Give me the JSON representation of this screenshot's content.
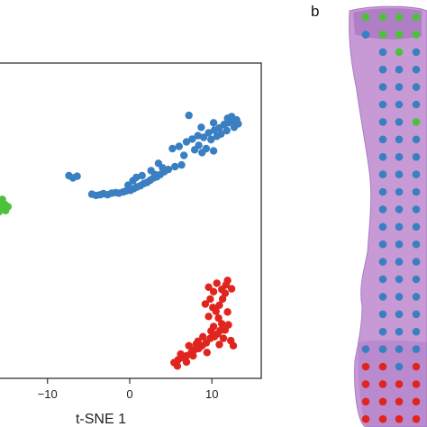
{
  "figure": {
    "panel_b_label": "b"
  },
  "colors": {
    "blue": "#3a7fc1",
    "green": "#4cc23a",
    "red": "#e0251e",
    "tissue": "#c79ad6",
    "tissue_dark": "#8f5fae"
  },
  "chart_data": {
    "type": "scatter",
    "xlabel": "t-SNE 1",
    "ylabel": "",
    "xlim": [
      -16,
      16
    ],
    "ylim": [
      -30,
      26
    ],
    "x_ticks": [
      -10,
      0,
      10
    ],
    "x_tick_labels": [
      "−10",
      "0",
      "10"
    ],
    "grid": false,
    "series": [
      {
        "color": "blue",
        "points": [
          [
            -7.4,
            6.0
          ],
          [
            -6.9,
            5.6
          ],
          [
            -6.4,
            5.9
          ],
          [
            -4.6,
            2.7
          ],
          [
            -4.1,
            2.5
          ],
          [
            -3.6,
            2.6
          ],
          [
            -3.2,
            2.8
          ],
          [
            -2.7,
            2.6
          ],
          [
            -2.2,
            2.9
          ],
          [
            -1.7,
            3.0
          ],
          [
            -1.3,
            2.9
          ],
          [
            -0.8,
            3.1
          ],
          [
            -0.4,
            3.3
          ],
          [
            0.1,
            3.4
          ],
          [
            0.5,
            3.7
          ],
          [
            0.9,
            4.0
          ],
          [
            1.3,
            4.2
          ],
          [
            1.7,
            4.6
          ],
          [
            2.1,
            4.8
          ],
          [
            2.5,
            5.2
          ],
          [
            2.9,
            5.6
          ],
          [
            3.3,
            5.8
          ],
          [
            3.7,
            6.2
          ],
          [
            4.2,
            6.7
          ],
          [
            4.7,
            7.1
          ],
          [
            5.5,
            7.6
          ],
          [
            6.3,
            7.9
          ],
          [
            -0.2,
            4.3
          ],
          [
            0.4,
            5.1
          ],
          [
            0.8,
            5.7
          ],
          [
            1.5,
            6.0
          ],
          [
            2.6,
            6.9
          ],
          [
            3.1,
            6.2
          ],
          [
            4.0,
            7.4
          ],
          [
            3.5,
            8.2
          ],
          [
            5.2,
            10.8
          ],
          [
            6.0,
            11.2
          ],
          [
            6.9,
            12.0
          ],
          [
            7.6,
            12.5
          ],
          [
            8.3,
            13.1
          ],
          [
            9.0,
            12.8
          ],
          [
            9.6,
            13.6
          ],
          [
            10.3,
            14.1
          ],
          [
            10.9,
            14.5
          ],
          [
            11.5,
            15.1
          ],
          [
            12.0,
            15.4
          ],
          [
            12.6,
            15.7
          ],
          [
            13.0,
            15.9
          ],
          [
            13.2,
            15.2
          ],
          [
            12.7,
            14.6
          ],
          [
            11.8,
            14.0
          ],
          [
            11.1,
            13.4
          ],
          [
            10.6,
            13.0
          ],
          [
            9.9,
            12.4
          ],
          [
            8.4,
            11.4
          ],
          [
            9.3,
            10.8
          ],
          [
            10.2,
            10.4
          ],
          [
            8.8,
            10.1
          ],
          [
            7.9,
            10.6
          ],
          [
            6.6,
            9.6
          ],
          [
            7.2,
            16.7
          ],
          [
            8.7,
            14.6
          ],
          [
            11.9,
            16.2
          ],
          [
            12.4,
            16.5
          ],
          [
            10.2,
            15.4
          ]
        ]
      },
      {
        "color": "green",
        "points": [
          [
            -16.4,
            0.6
          ],
          [
            -15.9,
            1.1
          ],
          [
            -15.6,
            0.3
          ],
          [
            -15.2,
            0.9
          ],
          [
            -14.8,
            0.5
          ],
          [
            -15.9,
            -0.4
          ],
          [
            -16.2,
            -0.9
          ],
          [
            -15.5,
            1.8
          ],
          [
            -16.6,
            1.3
          ],
          [
            -15.1,
            -0.2
          ],
          [
            -16.7,
            -1.3
          ]
        ]
      },
      {
        "color": "red",
        "points": [
          [
            5.4,
            -27.2
          ],
          [
            5.9,
            -26.7
          ],
          [
            6.4,
            -26.3
          ],
          [
            6.9,
            -26.0
          ],
          [
            7.5,
            -25.4
          ],
          [
            7.9,
            -24.9
          ],
          [
            8.4,
            -24.7
          ],
          [
            8.8,
            -24.2
          ],
          [
            9.3,
            -23.7
          ],
          [
            9.8,
            -22.9
          ],
          [
            10.3,
            -22.6
          ],
          [
            10.7,
            -22.1
          ],
          [
            11.0,
            -21.5
          ],
          [
            11.2,
            -20.3
          ],
          [
            10.8,
            -19.3
          ],
          [
            10.5,
            -18.1
          ],
          [
            10.9,
            -17.0
          ],
          [
            11.3,
            -15.9
          ],
          [
            11.6,
            -14.9
          ],
          [
            11.2,
            -14.2
          ],
          [
            11.7,
            -13.4
          ],
          [
            11.9,
            -12.6
          ],
          [
            10.6,
            -13.1
          ],
          [
            10.2,
            -14.6
          ],
          [
            9.8,
            -15.9
          ],
          [
            10.1,
            -17.4
          ],
          [
            9.6,
            -19.0
          ],
          [
            10.2,
            -20.8
          ],
          [
            11.6,
            -21.4
          ],
          [
            12.0,
            -20.5
          ],
          [
            12.3,
            -23.3
          ],
          [
            12.6,
            -24.2
          ],
          [
            8.3,
            -23.4
          ],
          [
            7.7,
            -26.0
          ],
          [
            6.9,
            -27.1
          ],
          [
            5.8,
            -27.8
          ],
          [
            6.2,
            -25.7
          ],
          [
            7.2,
            -24.2
          ],
          [
            11.4,
            -22.9
          ],
          [
            10.9,
            -24.0
          ],
          [
            11.9,
            -18.2
          ],
          [
            9.6,
            -13.8
          ],
          [
            9.9,
            -21.6
          ],
          [
            8.9,
            -22.6
          ],
          [
            12.4,
            -14.1
          ],
          [
            9.2,
            -16.8
          ],
          [
            9.4,
            -25.4
          ],
          [
            8.1,
            -23.9
          ]
        ]
      }
    ]
  },
  "spots": {
    "columns": [
      0.02,
      0.17,
      0.33,
      0.5,
      0.67,
      0.83
    ],
    "rows_legend": "spot grid on tissue; color = cluster",
    "green_spots": [
      [
        0,
        0
      ],
      [
        1,
        0
      ],
      [
        2,
        0
      ],
      [
        3,
        0
      ],
      [
        4,
        0
      ],
      [
        1,
        1
      ],
      [
        2,
        1
      ],
      [
        4,
        1
      ],
      [
        5,
        6
      ]
    ],
    "red_spots": "bottom rows"
  }
}
